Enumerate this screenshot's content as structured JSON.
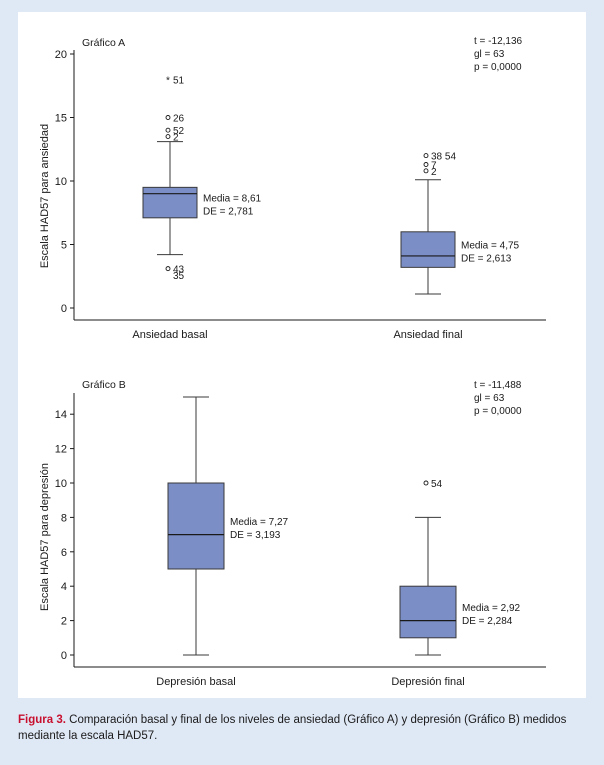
{
  "caption": {
    "label": "Figura 3.",
    "text": " Comparación basal y final de los niveles de ansiedad (Gráfico A) y depresión (Gráfico B) medidos mediante la escala HAD57."
  },
  "colors": {
    "box_fill": "#7b8ec6",
    "box_stroke": "#3a3a3a"
  },
  "chart_data": [
    {
      "type": "box",
      "title": "Gráfico A",
      "ylabel": "Escala HAD57 para ansiedad",
      "ylim": [
        0,
        20
      ],
      "yticks": [
        0,
        5,
        10,
        15,
        20
      ],
      "stats": [
        "t = -12,136",
        "gl = 63",
        "p = 0,0000"
      ],
      "groups": [
        {
          "category": "Ansiedad basal",
          "whisker_low": 4.2,
          "q1": 7.1,
          "median": 9.0,
          "q3": 9.5,
          "whisker_high": 13.1,
          "mean_label": "Media = 8,61",
          "sd_label": "DE = 2,781",
          "outliers": [
            {
              "value": 18.0,
              "label": "51",
              "marker": "*"
            },
            {
              "value": 15.0,
              "label": "26",
              "marker": "o"
            },
            {
              "value": 14.0,
              "label": "52",
              "marker": "o"
            },
            {
              "value": 13.5,
              "label": "2",
              "marker": "o"
            },
            {
              "value": 3.1,
              "label": "43",
              "marker": "o"
            },
            {
              "value": 2.6,
              "label": "35",
              "marker": ""
            }
          ]
        },
        {
          "category": "Ansiedad final",
          "whisker_low": 1.1,
          "q1": 3.2,
          "median": 4.1,
          "q3": 6.0,
          "whisker_high": 10.1,
          "mean_label": "Media = 4,75",
          "sd_label": "DE = 2,613",
          "outliers": [
            {
              "value": 12.0,
              "label": "38 54",
              "marker": "o"
            },
            {
              "value": 11.3,
              "label": "7",
              "marker": "o"
            },
            {
              "value": 10.8,
              "label": "2",
              "marker": "o"
            }
          ]
        }
      ]
    },
    {
      "type": "box",
      "title": "Gráfico B",
      "ylabel": "Escala HAD57 para depresión",
      "ylim": [
        0,
        15
      ],
      "yticks": [
        0,
        2,
        4,
        6,
        8,
        10,
        12,
        14
      ],
      "stats": [
        "t = -11,488",
        "gl = 63",
        "p = 0,0000"
      ],
      "groups": [
        {
          "category": "Depresión basal",
          "whisker_low": 0,
          "q1": 5,
          "median": 7,
          "q3": 10,
          "whisker_high": 15,
          "mean_label": "Media = 7,27",
          "sd_label": "DE = 3,193",
          "outliers": []
        },
        {
          "category": "Depresión final",
          "whisker_low": 0,
          "q1": 1,
          "median": 2,
          "q3": 4,
          "whisker_high": 8,
          "mean_label": "Media = 2,92",
          "sd_label": "DE = 2,284",
          "outliers": [
            {
              "value": 10,
              "label": "54",
              "marker": "o"
            }
          ]
        }
      ]
    }
  ]
}
